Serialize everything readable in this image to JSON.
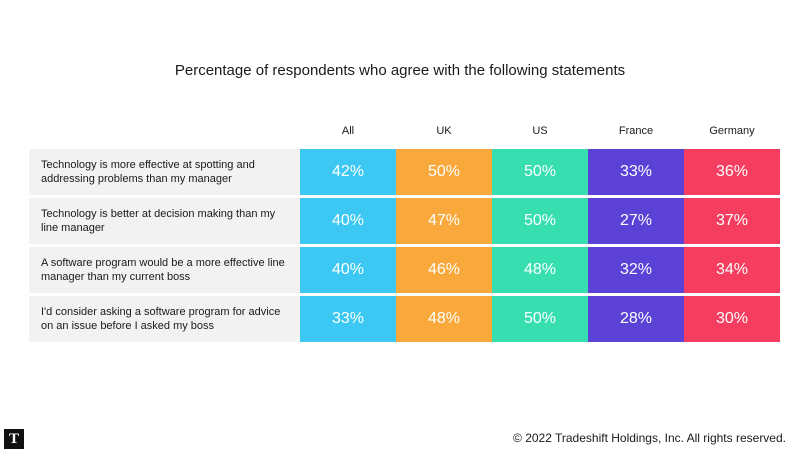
{
  "chart_data": {
    "type": "table",
    "title": "Percentage of respondents who agree with the following statements",
    "columns": [
      {
        "name": "All",
        "color": "#3cc8f2"
      },
      {
        "name": "UK",
        "color": "#f9a83b"
      },
      {
        "name": "US",
        "color": "#37dfb0"
      },
      {
        "name": "France",
        "color": "#5b41d6"
      },
      {
        "name": "Germany",
        "color": "#f53d5f"
      }
    ],
    "rows": [
      {
        "label": "Technology is more effective at spotting and addressing problems than my manager",
        "values": [
          "42%",
          "50%",
          "50%",
          "33%",
          "36%"
        ]
      },
      {
        "label": "Technology is better at decision making than my line manager",
        "values": [
          "40%",
          "47%",
          "50%",
          "27%",
          "37%"
        ]
      },
      {
        "label": "A software program would be a more effective line manager than my current boss",
        "values": [
          "40%",
          "46%",
          "48%",
          "32%",
          "34%"
        ]
      },
      {
        "label": "I'd consider asking a software program for advice on an issue before I asked my boss",
        "values": [
          "33%",
          "48%",
          "50%",
          "28%",
          "30%"
        ]
      }
    ]
  },
  "footer": {
    "logo_letter": "T",
    "copyright": "© 2022 Tradeshift Holdings, Inc. All rights reserved."
  }
}
